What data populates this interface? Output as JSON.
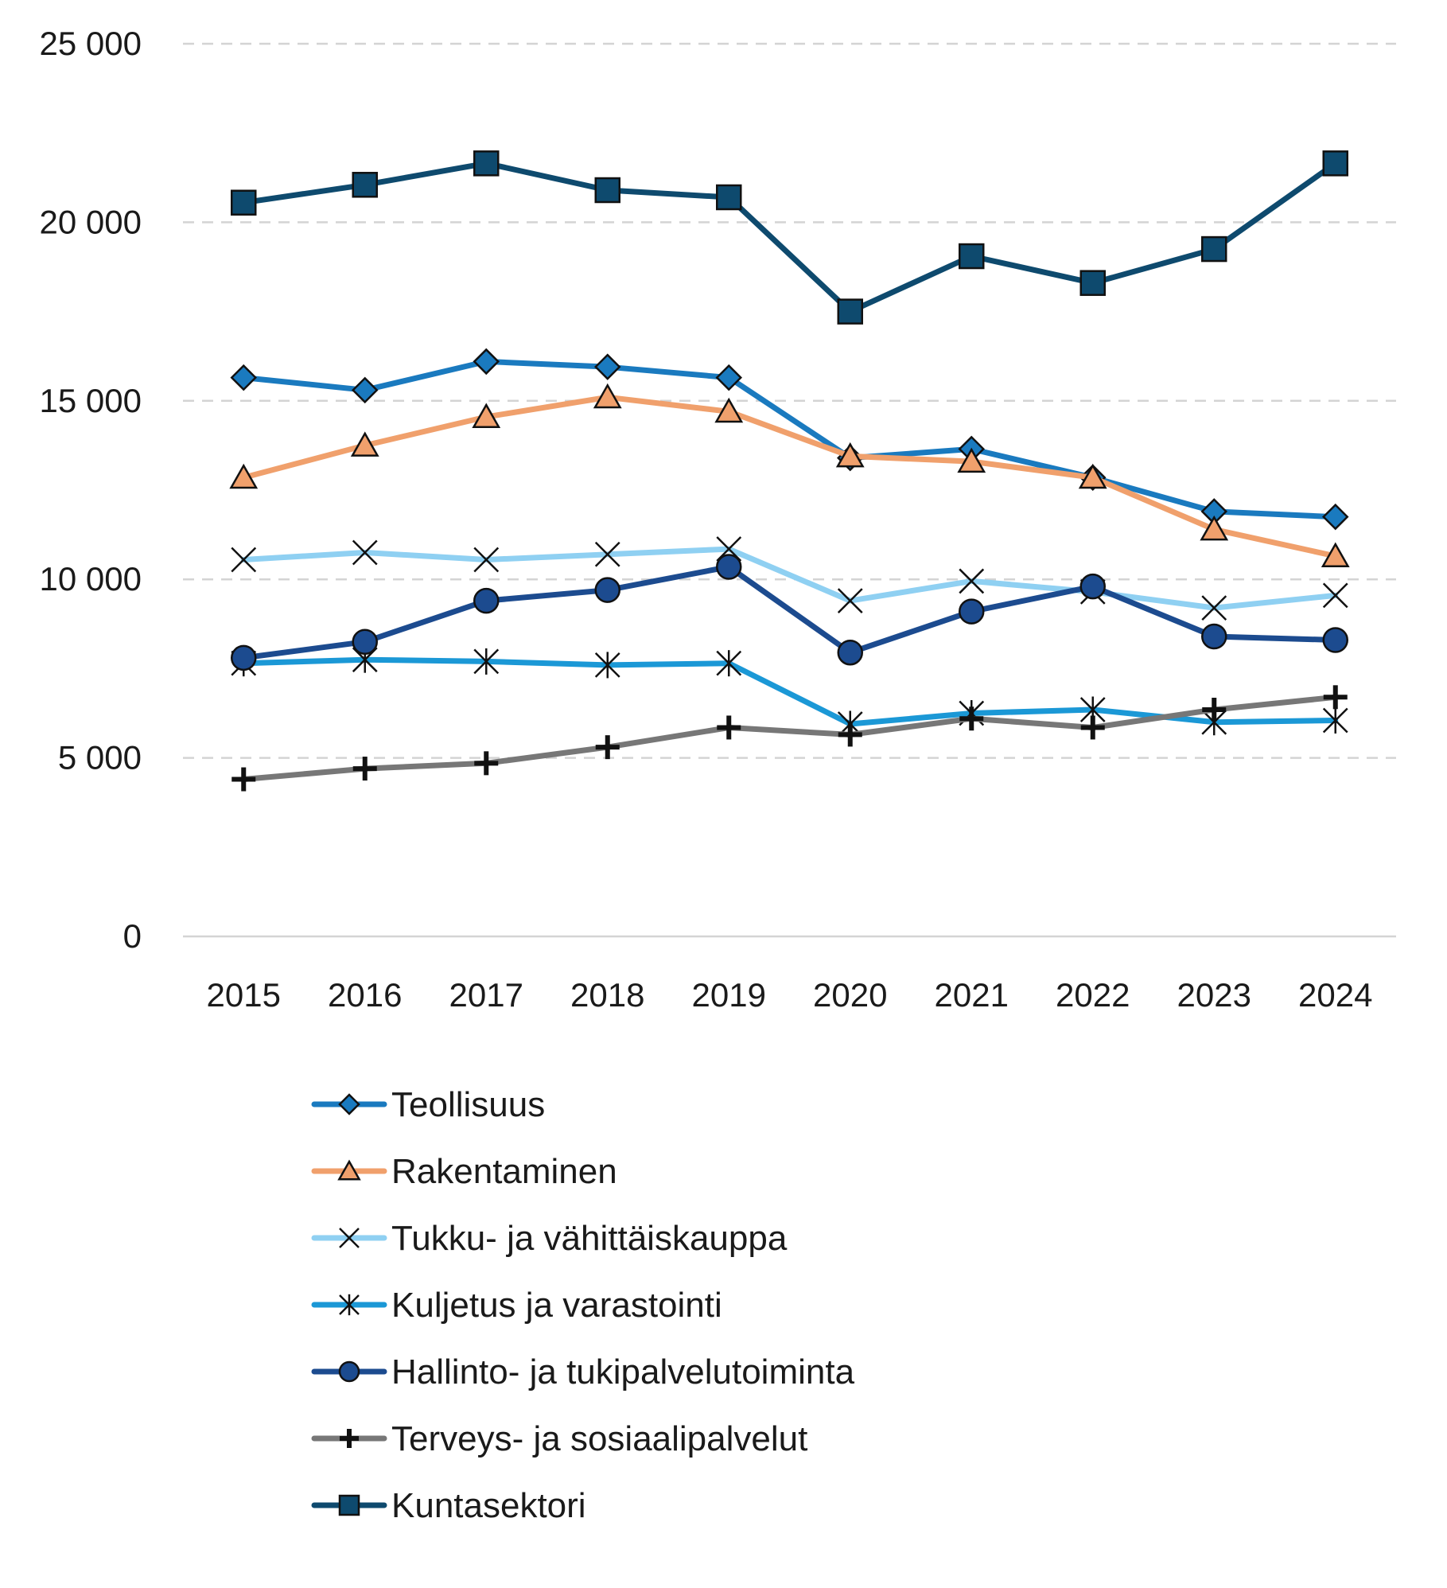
{
  "chart_data": {
    "type": "line",
    "title": "",
    "xlabel": "",
    "ylabel": "",
    "categories": [
      "2015",
      "2016",
      "2017",
      "2018",
      "2019",
      "2020",
      "2021",
      "2022",
      "2023",
      "2024"
    ],
    "ylim": [
      0,
      25000
    ],
    "yticks": [
      0,
      5000,
      10000,
      15000,
      20000,
      25000
    ],
    "ytick_labels": [
      "0",
      "5 000",
      "10 000",
      "15 000",
      "20 000",
      "25 000"
    ],
    "grid": "horizontal dashed",
    "legend_position": "bottom",
    "series": [
      {
        "name": "Teollisuus",
        "color": "#1a7abf",
        "marker": "diamond",
        "marker_fill": "#1a7abf",
        "values": [
          15650,
          15300,
          16100,
          15950,
          15650,
          13400,
          13650,
          12850,
          11900,
          11750
        ]
      },
      {
        "name": "Rakentaminen",
        "color": "#f0a06c",
        "marker": "triangle",
        "marker_fill": "#f0a06c",
        "values": [
          12850,
          13750,
          14550,
          15100,
          14700,
          13450,
          13300,
          12850,
          11400,
          10650
        ]
      },
      {
        "name": "Tukku- ja vähittäiskauppa",
        "color": "#8fd0f2",
        "marker": "x",
        "marker_fill": "none",
        "values": [
          10550,
          10750,
          10550,
          10700,
          10850,
          9400,
          9950,
          9650,
          9200,
          9550
        ]
      },
      {
        "name": "Kuljetus ja varastointi",
        "color": "#1b98d6",
        "marker": "star",
        "marker_fill": "none",
        "values": [
          7650,
          7750,
          7700,
          7600,
          7650,
          5950,
          6250,
          6350,
          6000,
          6050
        ]
      },
      {
        "name": "Hallinto- ja tukipalvelutoiminta",
        "color": "#1c4b8f",
        "marker": "circle",
        "marker_fill": "#1c4b8f",
        "values": [
          7800,
          8250,
          9400,
          9700,
          10350,
          7950,
          9100,
          9800,
          8400,
          8300
        ]
      },
      {
        "name": "Terveys- ja sosiaalipalvelut",
        "color": "#777777",
        "marker": "plus",
        "marker_fill": "none",
        "values": [
          4400,
          4700,
          4850,
          5300,
          5850,
          5650,
          6100,
          5850,
          6350,
          6700
        ]
      },
      {
        "name": "Kuntasektori",
        "color": "#0e4a6e",
        "marker": "square",
        "marker_fill": "#0e4a6e",
        "values": [
          20550,
          21050,
          21650,
          20900,
          20700,
          17500,
          19050,
          18300,
          19250,
          21650
        ]
      }
    ]
  }
}
